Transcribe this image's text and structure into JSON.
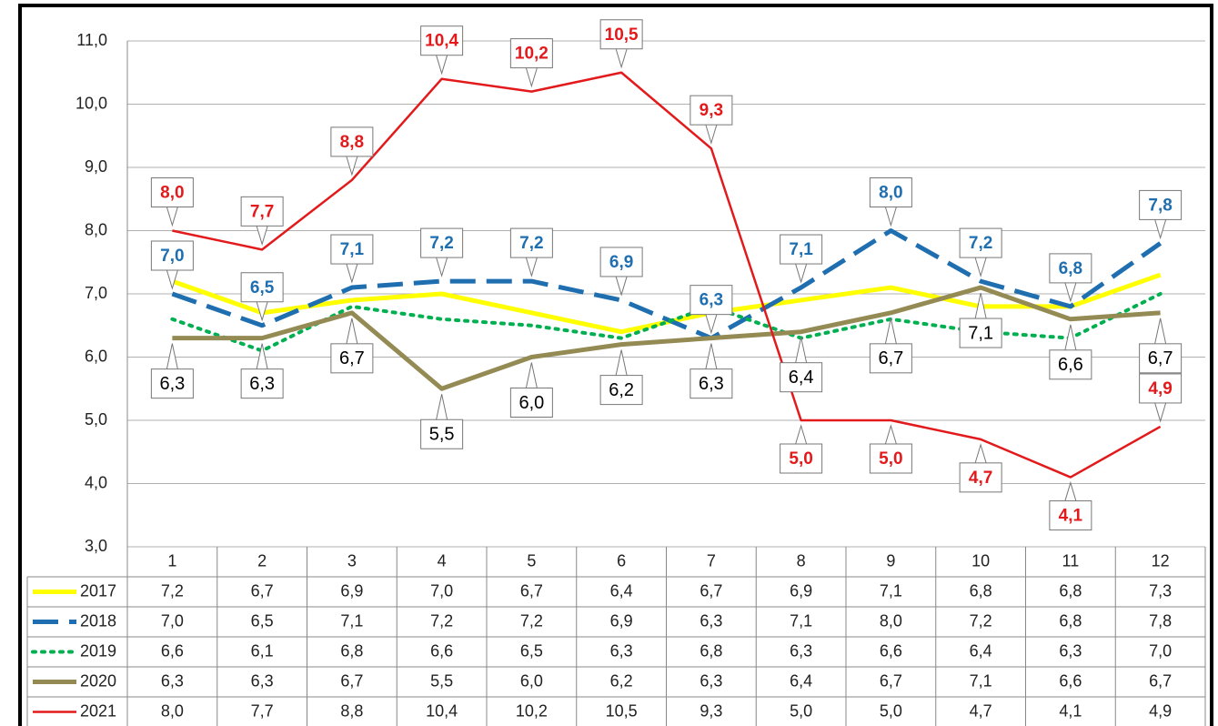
{
  "chart_data": {
    "type": "line",
    "categories": [
      "1",
      "2",
      "3",
      "4",
      "5",
      "6",
      "7",
      "8",
      "9",
      "10",
      "11",
      "12"
    ],
    "ylim": [
      3,
      11
    ],
    "yticks": [
      {
        "value": 3,
        "label": "3,0"
      },
      {
        "value": 4,
        "label": "4,0"
      },
      {
        "value": 5,
        "label": "5,0"
      },
      {
        "value": 6,
        "label": "6,0"
      },
      {
        "value": 7,
        "label": "7,0"
      },
      {
        "value": 8,
        "label": "8,0"
      },
      {
        "value": 9,
        "label": "9,0"
      },
      {
        "value": 10,
        "label": "10,0"
      },
      {
        "value": 11,
        "label": "11,0"
      }
    ],
    "grid": true,
    "series": [
      {
        "name": "2017",
        "color": "#ffff00",
        "dash": "solid",
        "data_labels": false,
        "values": [
          7.2,
          6.7,
          6.9,
          7.0,
          6.7,
          6.4,
          6.7,
          6.9,
          7.1,
          6.8,
          6.8,
          7.3
        ],
        "value_labels": [
          "7,2",
          "6,7",
          "6,9",
          "7,0",
          "6,7",
          "6,4",
          "6,7",
          "6,9",
          "7,1",
          "6,8",
          "6,8",
          "7,3"
        ]
      },
      {
        "name": "2018",
        "color": "#1f6fb0",
        "dash": "dashed",
        "data_labels": true,
        "values": [
          7.0,
          6.5,
          7.1,
          7.2,
          7.2,
          6.9,
          6.3,
          7.1,
          8.0,
          7.2,
          6.8,
          7.8
        ],
        "value_labels": [
          "7,0",
          "6,5",
          "7,1",
          "7,2",
          "7,2",
          "6,9",
          "6,3",
          "7,1",
          "8,0",
          "7,2",
          "6,8",
          "7,8"
        ]
      },
      {
        "name": "2019",
        "color": "#00b050",
        "dash": "dotted",
        "data_labels": false,
        "values": [
          6.6,
          6.1,
          6.8,
          6.6,
          6.5,
          6.3,
          6.8,
          6.3,
          6.6,
          6.4,
          6.3,
          7.0
        ],
        "value_labels": [
          "6,6",
          "6,1",
          "6,8",
          "6,6",
          "6,5",
          "6,3",
          "6,8",
          "6,3",
          "6,6",
          "6,4",
          "6,3",
          "7,0"
        ]
      },
      {
        "name": "2020",
        "color": "#948a54",
        "dash": "solid",
        "data_labels": true,
        "values": [
          6.3,
          6.3,
          6.7,
          5.5,
          6.0,
          6.2,
          6.3,
          6.4,
          6.7,
          7.1,
          6.6,
          6.7
        ],
        "value_labels": [
          "6,3",
          "6,3",
          "6,7",
          "5,5",
          "6,0",
          "6,2",
          "6,3",
          "6,4",
          "6,7",
          "7,1",
          "6,6",
          "6,7"
        ]
      },
      {
        "name": "2021",
        "color": "#e31a1c",
        "dash": "solid",
        "data_labels": true,
        "values": [
          8.0,
          7.7,
          8.8,
          10.4,
          10.2,
          10.5,
          9.3,
          5.0,
          5.0,
          4.7,
          4.1,
          4.9
        ],
        "value_labels": [
          "8,0",
          "7,7",
          "8,8",
          "10,4",
          "10,2",
          "10,5",
          "9,3",
          "5,0",
          "5,0",
          "4,7",
          "4,1",
          "4,9"
        ]
      }
    ]
  }
}
